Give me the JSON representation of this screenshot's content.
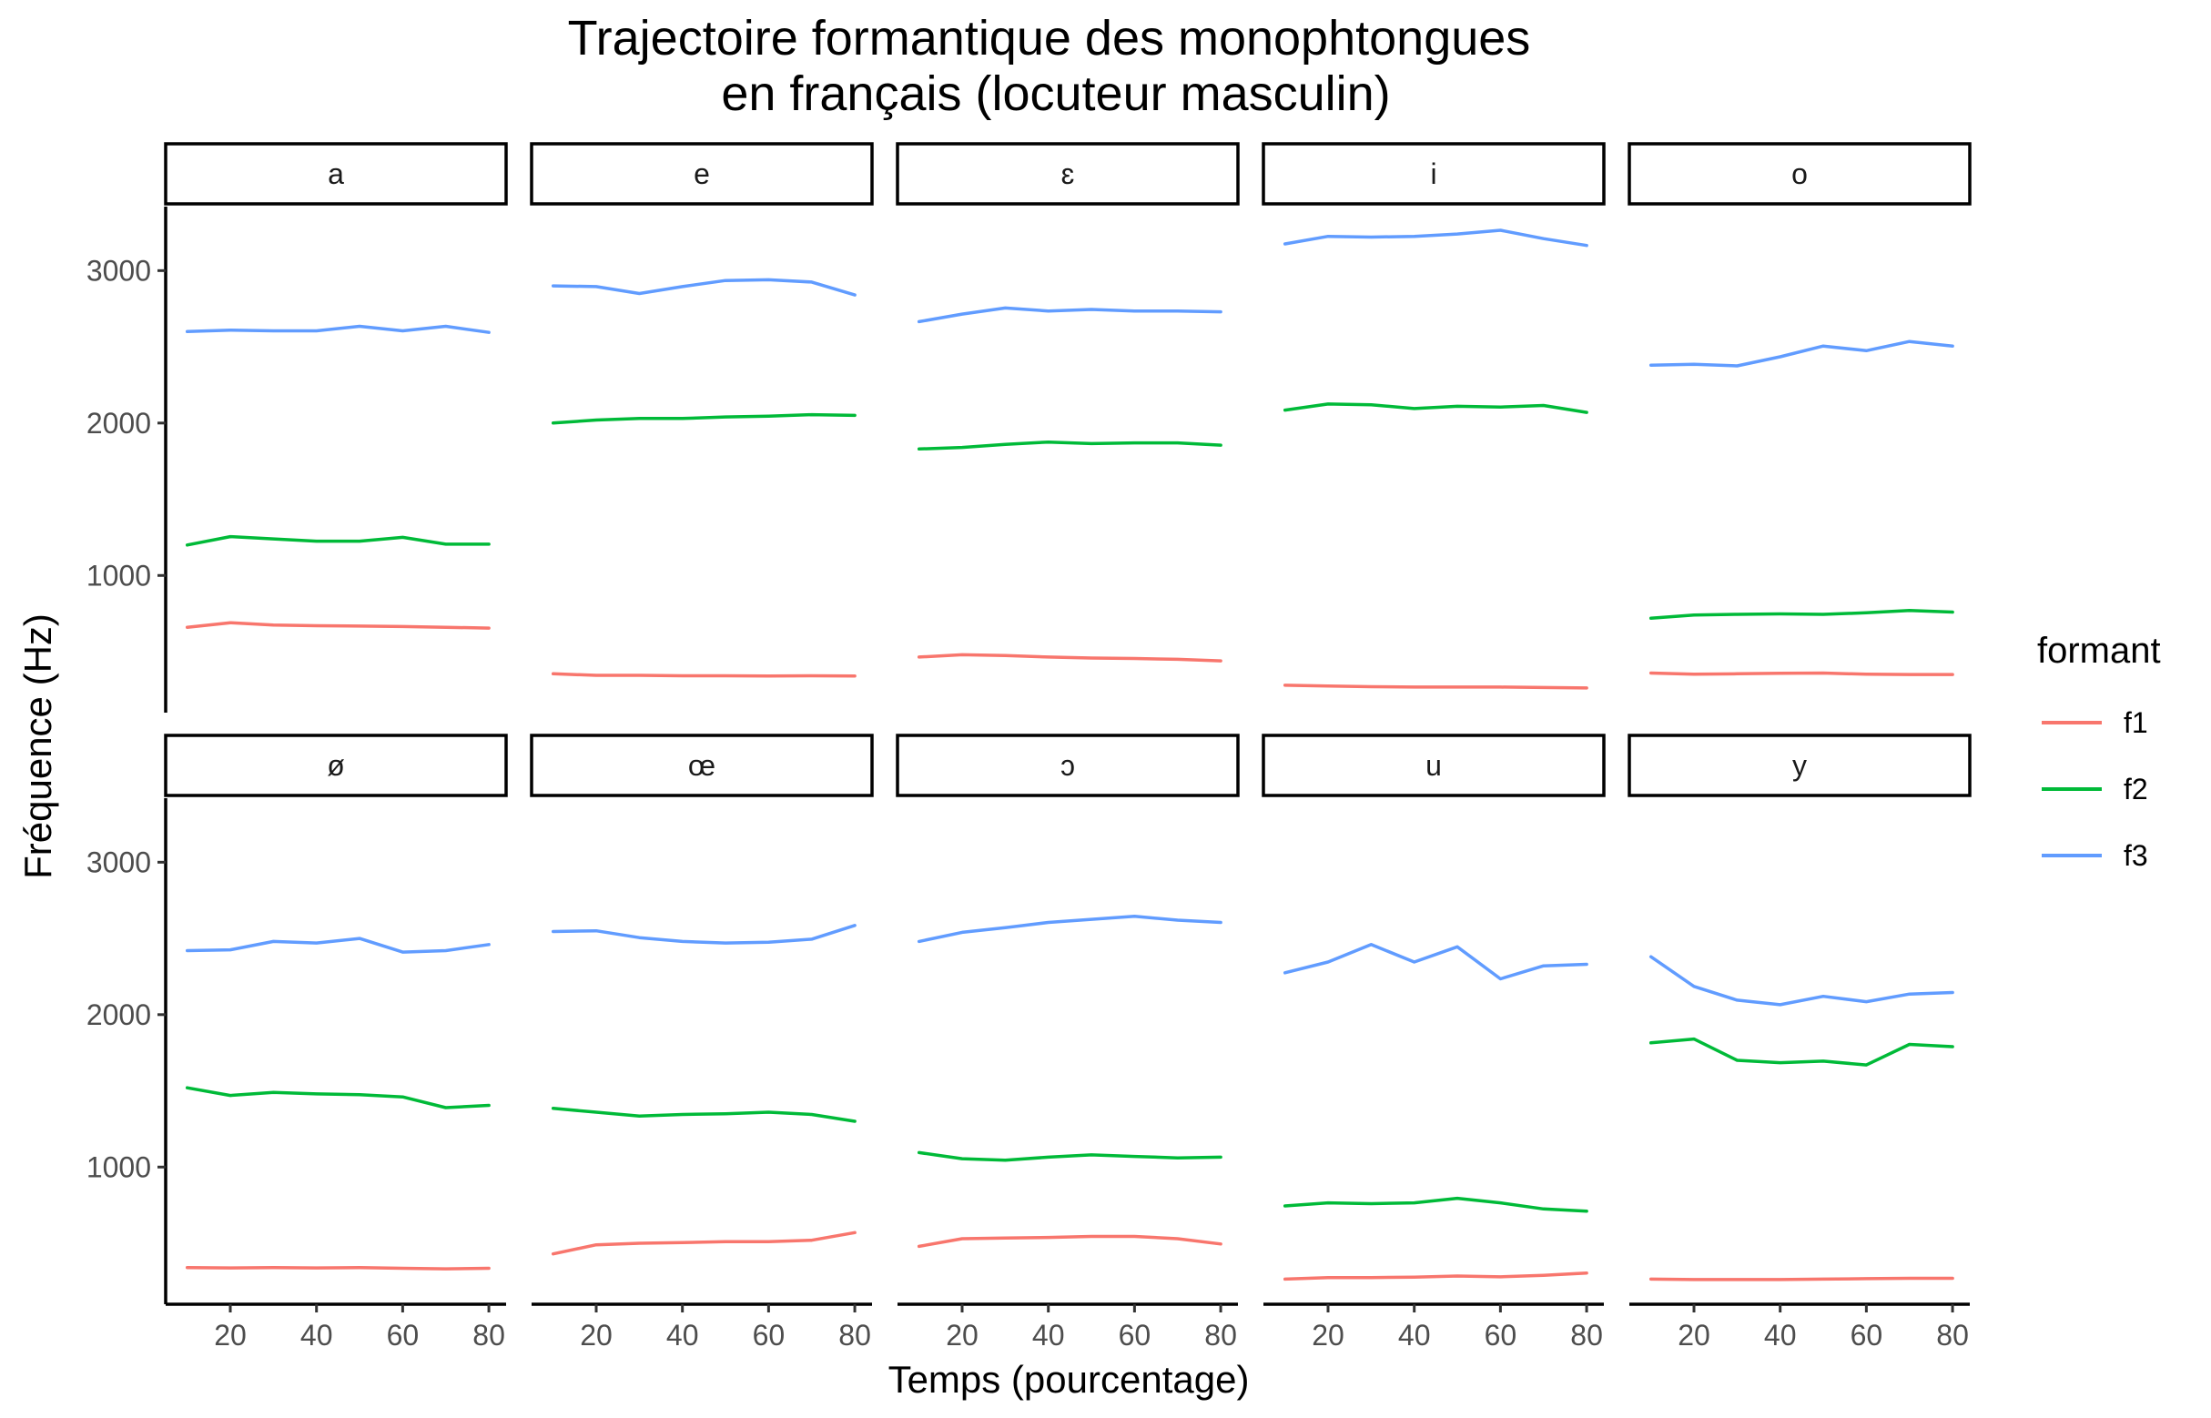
{
  "chart_data": {
    "type": "line",
    "title": "Trajectoire formantique des monophtongues\nen français (locuteur masculin)",
    "xlabel": "Temps (pourcentage)",
    "ylabel": "Fréquence (Hz)",
    "x": [
      10,
      20,
      30,
      40,
      50,
      60,
      70,
      80
    ],
    "xlim": [
      5,
      84
    ],
    "ylim": [
      100,
      3420
    ],
    "xticks": [
      20,
      40,
      60,
      80
    ],
    "yticks": [
      1000,
      2000,
      3000
    ],
    "grid": false,
    "legend": {
      "title": "formant",
      "position": "right",
      "entries": [
        {
          "name": "f1",
          "color": "#F8766D"
        },
        {
          "name": "f2",
          "color": "#00BA38"
        },
        {
          "name": "f3",
          "color": "#619CFF"
        }
      ]
    },
    "facets": [
      {
        "vowel": "a",
        "f1": [
          660,
          690,
          675,
          670,
          668,
          665,
          660,
          655
        ],
        "f2": [
          1200,
          1255,
          1240,
          1225,
          1225,
          1250,
          1205,
          1205
        ],
        "f3": [
          2600,
          2610,
          2605,
          2605,
          2635,
          2605,
          2635,
          2595
        ]
      },
      {
        "vowel": "e",
        "f1": [
          355,
          345,
          345,
          342,
          342,
          340,
          342,
          340
        ],
        "f2": [
          2000,
          2020,
          2030,
          2030,
          2040,
          2045,
          2055,
          2050
        ],
        "f3": [
          2900,
          2895,
          2850,
          2895,
          2935,
          2940,
          2925,
          2840
        ],
        "x": [
          10,
          20,
          30,
          40,
          50,
          60,
          70,
          80
        ]
      },
      {
        "vowel": "ɛ",
        "f1": [
          465,
          480,
          475,
          465,
          458,
          455,
          450,
          440
        ],
        "f2": [
          1830,
          1840,
          1860,
          1875,
          1865,
          1870,
          1870,
          1855
        ],
        "f3": [
          2665,
          2715,
          2755,
          2735,
          2745,
          2735,
          2735,
          2730
        ]
      },
      {
        "vowel": "i",
        "f1": [
          280,
          275,
          270,
          268,
          268,
          268,
          265,
          262
        ],
        "f2": [
          2085,
          2125,
          2120,
          2095,
          2110,
          2105,
          2115,
          2070
        ],
        "f3": [
          3175,
          3225,
          3220,
          3225,
          3240,
          3265,
          3210,
          3165
        ]
      },
      {
        "vowel": "o",
        "f1": [
          360,
          352,
          355,
          358,
          360,
          352,
          350,
          350
        ],
        "f2": [
          720,
          740,
          745,
          748,
          745,
          755,
          770,
          760
        ],
        "f3": [
          2380,
          2385,
          2375,
          2435,
          2505,
          2475,
          2535,
          2505
        ]
      },
      {
        "vowel": "ø",
        "f1": [
          340,
          338,
          340,
          338,
          340,
          336,
          332,
          336
        ],
        "f2": [
          1520,
          1470,
          1490,
          1480,
          1475,
          1460,
          1390,
          1405
        ],
        "f3": [
          2420,
          2425,
          2480,
          2470,
          2500,
          2410,
          2420,
          2460
        ]
      },
      {
        "vowel": "œ",
        "f1": [
          430,
          490,
          500,
          505,
          510,
          510,
          520,
          570
        ],
        "f2": [
          1385,
          1360,
          1335,
          1345,
          1350,
          1360,
          1345,
          1300
        ],
        "f3": [
          2545,
          2550,
          2505,
          2480,
          2470,
          2475,
          2495,
          2585
        ]
      },
      {
        "vowel": "ɔ",
        "f1": [
          480,
          530,
          535,
          538,
          545,
          545,
          530,
          495
        ],
        "f2": [
          1095,
          1055,
          1045,
          1065,
          1080,
          1070,
          1060,
          1065
        ],
        "f3": [
          2480,
          2540,
          2570,
          2605,
          2625,
          2645,
          2620,
          2605
        ]
      },
      {
        "vowel": "u",
        "f1": [
          265,
          275,
          275,
          278,
          285,
          280,
          290,
          305
        ],
        "f2": [
          745,
          765,
          760,
          765,
          795,
          765,
          725,
          710
        ],
        "f3": [
          2275,
          2345,
          2460,
          2345,
          2445,
          2235,
          2320,
          2330
        ]
      },
      {
        "vowel": "y",
        "f1": [
          265,
          262,
          262,
          262,
          265,
          268,
          270,
          270
        ],
        "f2": [
          1815,
          1840,
          1700,
          1685,
          1695,
          1670,
          1805,
          1790
        ],
        "f3": [
          2380,
          2185,
          2095,
          2065,
          2120,
          2085,
          2135,
          2145
        ]
      }
    ]
  }
}
